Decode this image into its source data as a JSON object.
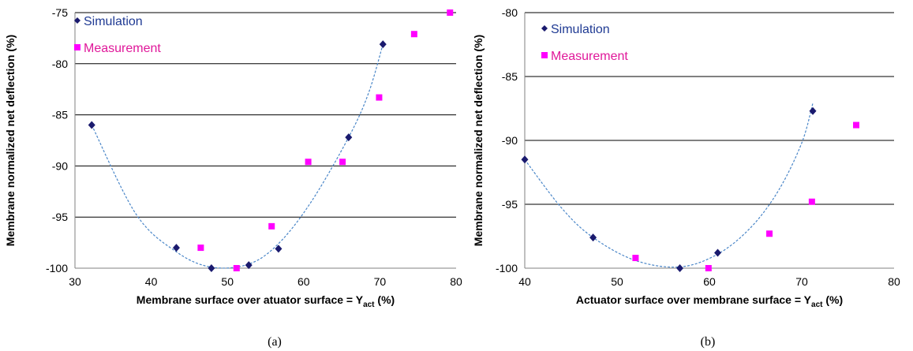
{
  "colors": {
    "simulation": "#1a1a6e",
    "measurement": "#ff00ff",
    "fit": "#4a86c8",
    "grid": "#000000",
    "simulation_legend_text": "#1f3a93",
    "measurement_legend_text": "#e0189a"
  },
  "chart_data": [
    {
      "type": "scatter",
      "caption": "(a)",
      "title": "",
      "xlabel": "Membrane surface over atuator surface = Y",
      "xlabel_sub": "act",
      "xlabel_unit": " (%)",
      "ylabel": "Membrane normalized net deflection (%)",
      "xlim": [
        30,
        80
      ],
      "ylim": [
        -100,
        -75
      ],
      "xticks": [
        30,
        40,
        50,
        60,
        70,
        80
      ],
      "yticks": [
        -100,
        -95,
        -90,
        -85,
        -80,
        -75
      ],
      "grid": "horizontal",
      "legend_placement": "top-left",
      "series": [
        {
          "name": "Simulation",
          "marker": "diamond",
          "points": [
            [
              32.2,
              -86
            ],
            [
              43.3,
              -98
            ],
            [
              47.9,
              -100
            ],
            [
              52.8,
              -99.7
            ],
            [
              56.7,
              -98.1
            ],
            [
              65.9,
              -87.2
            ],
            [
              70.4,
              -78.1
            ]
          ]
        },
        {
          "name": "Measurement",
          "marker": "square",
          "points": [
            [
              46.5,
              -98
            ],
            [
              51.2,
              -100
            ],
            [
              55.8,
              -95.9
            ],
            [
              60.6,
              -89.6
            ],
            [
              65.1,
              -89.6
            ],
            [
              69.9,
              -83.3
            ],
            [
              74.5,
              -77.1
            ],
            [
              79.2,
              -75
            ]
          ]
        }
      ],
      "fit_curve": [
        [
          32.2,
          -86
        ],
        [
          38,
          -94.7
        ],
        [
          43.3,
          -98.4
        ],
        [
          47.9,
          -99.9
        ],
        [
          52.8,
          -99.6
        ],
        [
          56.7,
          -97.6
        ],
        [
          61,
          -93.5
        ],
        [
          65.9,
          -87.2
        ],
        [
          68.5,
          -82.9
        ],
        [
          70.4,
          -78.1
        ]
      ]
    },
    {
      "type": "scatter",
      "caption": "(b)",
      "title": "",
      "xlabel": "Actuator surface over membrane surface = Y",
      "xlabel_sub": "act",
      "xlabel_unit": " (%)",
      "ylabel": "Membrane normalized net deflection (%)",
      "xlim": [
        40,
        80
      ],
      "ylim": [
        -100,
        -80
      ],
      "xticks": [
        40,
        50,
        60,
        70,
        80
      ],
      "yticks": [
        -100,
        -95,
        -90,
        -85,
        -80
      ],
      "grid": "horizontal",
      "legend_placement": "top-left",
      "series": [
        {
          "name": "Simulation",
          "marker": "diamond",
          "points": [
            [
              40,
              -91.5
            ],
            [
              47.4,
              -97.6
            ],
            [
              56.8,
              -100
            ],
            [
              60.9,
              -98.8
            ],
            [
              71.2,
              -87.7
            ]
          ]
        },
        {
          "name": "Measurement",
          "marker": "square",
          "points": [
            [
              52,
              -99.2
            ],
            [
              59.9,
              -100
            ],
            [
              66.5,
              -97.3
            ],
            [
              71.1,
              -94.8
            ],
            [
              75.9,
              -88.8
            ]
          ]
        }
      ],
      "fit_curve": [
        [
          40,
          -91.5
        ],
        [
          44,
          -95.3
        ],
        [
          47.4,
          -97.6
        ],
        [
          52,
          -99.4
        ],
        [
          56.8,
          -99.9
        ],
        [
          60.9,
          -98.9
        ],
        [
          64.5,
          -96.8
        ],
        [
          67.5,
          -93.9
        ],
        [
          70,
          -90.2
        ],
        [
          71.2,
          -87.1
        ]
      ]
    }
  ]
}
